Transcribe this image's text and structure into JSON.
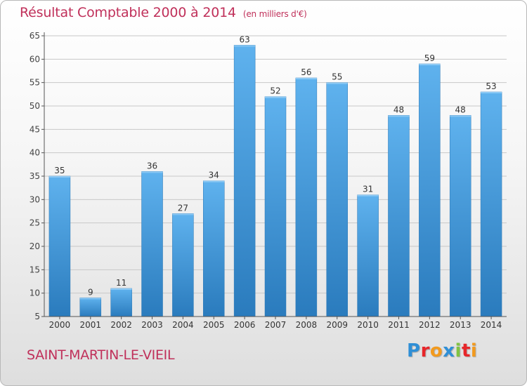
{
  "title": "Résultat Comptable 2000 à 2014",
  "unit_note": "(en milliers d'€)",
  "town_name": "SAINT-MARTIN-LE-VIEIL",
  "logo": {
    "letters": [
      "P",
      "r",
      "o",
      "x",
      "i",
      "t",
      "i"
    ],
    "colors": [
      "#2f8fd6",
      "#e7262a",
      "#f29a1e",
      "#2f8fd6",
      "#80c342",
      "#e7262a",
      "#f29a1e"
    ]
  },
  "colors": {
    "title": "#c0305a",
    "bar_light": "#5fb2ee",
    "bar_dark": "#2a7bbd",
    "grid": "#c8c8c8",
    "axis": "#555555"
  },
  "chart_data": {
    "type": "bar",
    "categories": [
      "2000",
      "2001",
      "2002",
      "2003",
      "2004",
      "2005",
      "2006",
      "2007",
      "2008",
      "2009",
      "2010",
      "2011",
      "2012",
      "2013",
      "2014"
    ],
    "values": [
      35,
      9,
      11,
      36,
      27,
      34,
      63,
      52,
      56,
      55,
      31,
      48,
      59,
      48,
      53
    ],
    "data_labels": [
      "35",
      "9",
      "11",
      "36",
      "27",
      "34",
      "63",
      "52",
      "56",
      "55",
      "31",
      "48",
      "59",
      "48",
      "53"
    ],
    "ylim": [
      5,
      65
    ],
    "yticks": [
      5,
      10,
      15,
      20,
      25,
      30,
      35,
      40,
      45,
      50,
      55,
      60,
      65
    ],
    "ytick_labels": [
      "5",
      "10",
      "15",
      "20",
      "25",
      "30",
      "35",
      "40",
      "45",
      "50",
      "55",
      "60",
      "65"
    ],
    "grid": true
  }
}
